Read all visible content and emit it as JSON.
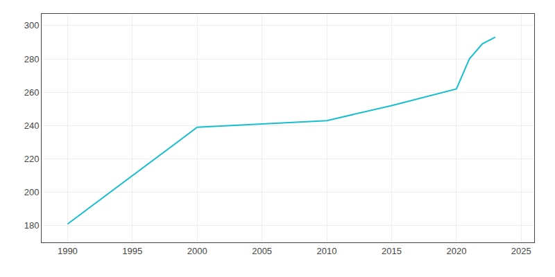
{
  "chart_data": {
    "type": "line",
    "x": [
      1990,
      2000,
      2005,
      2010,
      2015,
      2020,
      2021,
      2022,
      2023
    ],
    "values": [
      181,
      239,
      241,
      243,
      252,
      262,
      280,
      289,
      293
    ],
    "color": "#17becf",
    "xlim": [
      1988,
      2026
    ],
    "ylim": [
      170,
      307
    ],
    "xticks": [
      1990,
      1995,
      2000,
      2005,
      2010,
      2015,
      2020,
      2025
    ],
    "yticks": [
      180,
      200,
      220,
      240,
      260,
      280,
      300
    ],
    "grid": true
  }
}
